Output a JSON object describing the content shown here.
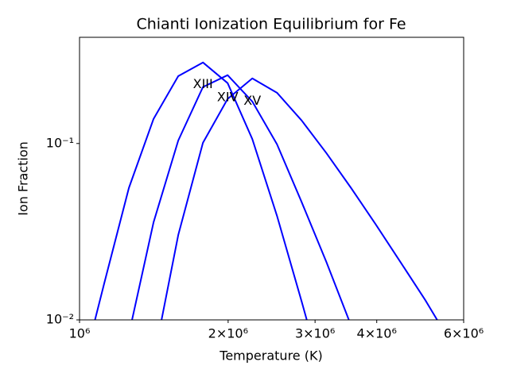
{
  "chart_data": {
    "type": "line",
    "title": "Chianti Ionization Equilibrium for Fe",
    "xlabel": "Temperature (K)",
    "ylabel": "Ion Fraction",
    "xscale": "log",
    "yscale": "log",
    "xlim": [
      1000000,
      6000000
    ],
    "ylim": [
      0.01,
      0.4
    ],
    "xticks": [
      {
        "value": 1000000,
        "label": "10⁶"
      },
      {
        "value": 2000000,
        "label": "2×10⁶"
      },
      {
        "value": 3000000,
        "label": "3×10⁶"
      },
      {
        "value": 4000000,
        "label": "4×10⁶"
      },
      {
        "value": 6000000,
        "label": "6×10⁶"
      }
    ],
    "yticks": [
      {
        "value": 0.01,
        "label": "10⁻²"
      },
      {
        "value": 0.1,
        "label": "10⁻¹"
      }
    ],
    "grid": false,
    "series": [
      {
        "color": "#0000ff",
        "x": [
          1000000,
          1122018,
          1258925,
          1412538,
          1584893,
          1778279,
          1995262,
          2238721,
          2511886,
          2818383,
          3162278
        ],
        "values": [
          0.0045,
          0.0161,
          0.056,
          0.138,
          0.241,
          0.288,
          0.22,
          0.106,
          0.0389,
          0.0127,
          0.004
        ]
      },
      {
        "color": "#0000ff",
        "x": [
          1258925,
          1412538,
          1584893,
          1778279,
          1995262,
          2238721,
          2511886,
          2818383,
          3162278,
          3548134
        ],
        "values": [
          0.0083,
          0.0358,
          0.104,
          0.209,
          0.244,
          0.173,
          0.099,
          0.0465,
          0.0213,
          0.0093
        ]
      },
      {
        "color": "#0000ff",
        "x": [
          1412538,
          1584893,
          1778279,
          1995262,
          2238721,
          2511886,
          2818383,
          3162278,
          3548134,
          3981072,
          4466836,
          5011872,
          5623413
        ],
        "values": [
          0.0059,
          0.0303,
          0.101,
          0.179,
          0.234,
          0.194,
          0.135,
          0.0883,
          0.056,
          0.0348,
          0.0213,
          0.013,
          0.0076
        ]
      }
    ],
    "annotations": [
      {
        "text": "XIII",
        "x": 1778279,
        "y": 0.216
      },
      {
        "text": "XIV",
        "x": 1995262,
        "y": 0.182
      },
      {
        "text": "XV",
        "x": 2238721,
        "y": 0.174
      }
    ]
  }
}
